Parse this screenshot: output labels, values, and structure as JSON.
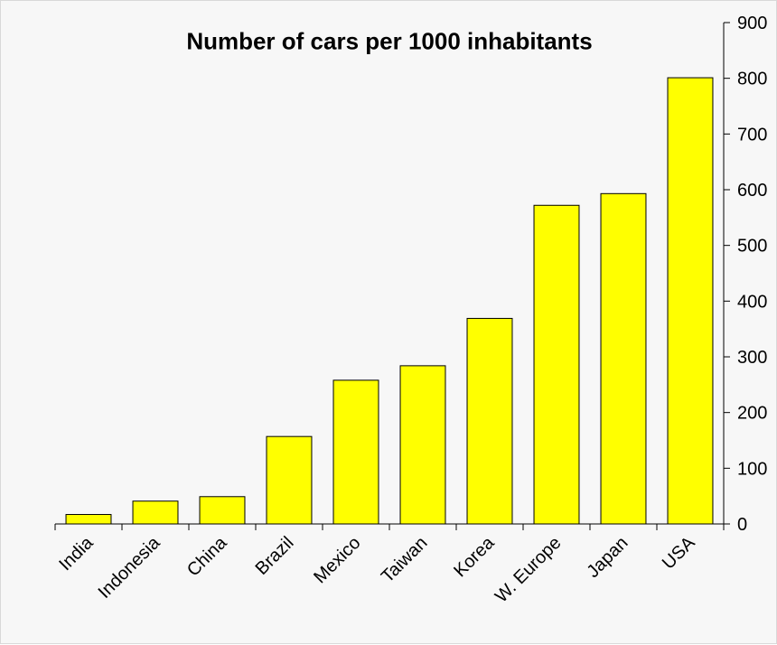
{
  "chart_data": {
    "type": "bar",
    "title": "Number of cars per 1000 inhabitants",
    "categories": [
      "India",
      "Indonesia",
      "China",
      "Brazil",
      "Mexico",
      "Taiwan",
      "Korea",
      "W. Europe",
      "Japan",
      "USA"
    ],
    "values": [
      17,
      41,
      49,
      157,
      258,
      284,
      369,
      572,
      593,
      801
    ],
    "xlabel": "",
    "ylabel": "",
    "ylim": [
      0,
      900
    ],
    "yticks": [
      0,
      100,
      200,
      300,
      400,
      500,
      600,
      700,
      800,
      900
    ],
    "y_axis_side": "right",
    "grid": false,
    "legend": "none",
    "colors": {
      "bar_fill": "#ffff00",
      "bar_stroke": "#000000",
      "background": "#f7f7f7"
    }
  }
}
